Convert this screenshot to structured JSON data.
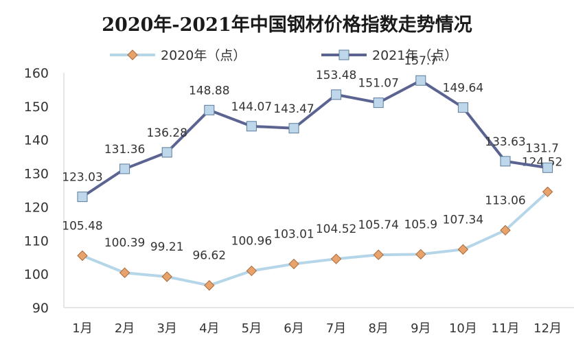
{
  "chart_data": {
    "type": "line",
    "title": "2020年-2021年中国钢材价格指数走势情况",
    "categories": [
      "1月",
      "2月",
      "3月",
      "4月",
      "5月",
      "6月",
      "7月",
      "8月",
      "9月",
      "10月",
      "11月",
      "12月"
    ],
    "series": [
      {
        "name": "2020年（点）",
        "values": [
          105.48,
          100.39,
          99.21,
          96.62,
          100.96,
          103.01,
          104.52,
          105.74,
          105.9,
          107.34,
          113.06,
          124.52
        ],
        "labels": [
          "105.48",
          "100.39",
          "99.21",
          "96.62",
          "100.96",
          "103.01",
          "104.52",
          "105.74",
          "105.9",
          "107.34",
          "113.06",
          "124.52"
        ],
        "line_color": "#B5D5E8",
        "marker": "diamond",
        "marker_color": "#E8A26B"
      },
      {
        "name": "2021年（点）",
        "values": [
          123.03,
          131.36,
          136.28,
          148.88,
          144.07,
          143.47,
          153.48,
          151.07,
          157.7,
          149.64,
          133.63,
          131.7
        ],
        "labels": [
          "123.03",
          "131.36",
          "136.28",
          "148.88",
          "144.07",
          "143.47",
          "153.48",
          "151.07",
          "157.7",
          "149.64",
          "133.63",
          "131.7"
        ],
        "line_color": "#5B6391",
        "marker": "square",
        "marker_color": "#BFD7EA"
      }
    ],
    "ylim": [
      90,
      160
    ],
    "yticks": [
      "90",
      "100",
      "110",
      "120",
      "130",
      "140",
      "150",
      "160"
    ],
    "grid": false,
    "legend": "top"
  }
}
